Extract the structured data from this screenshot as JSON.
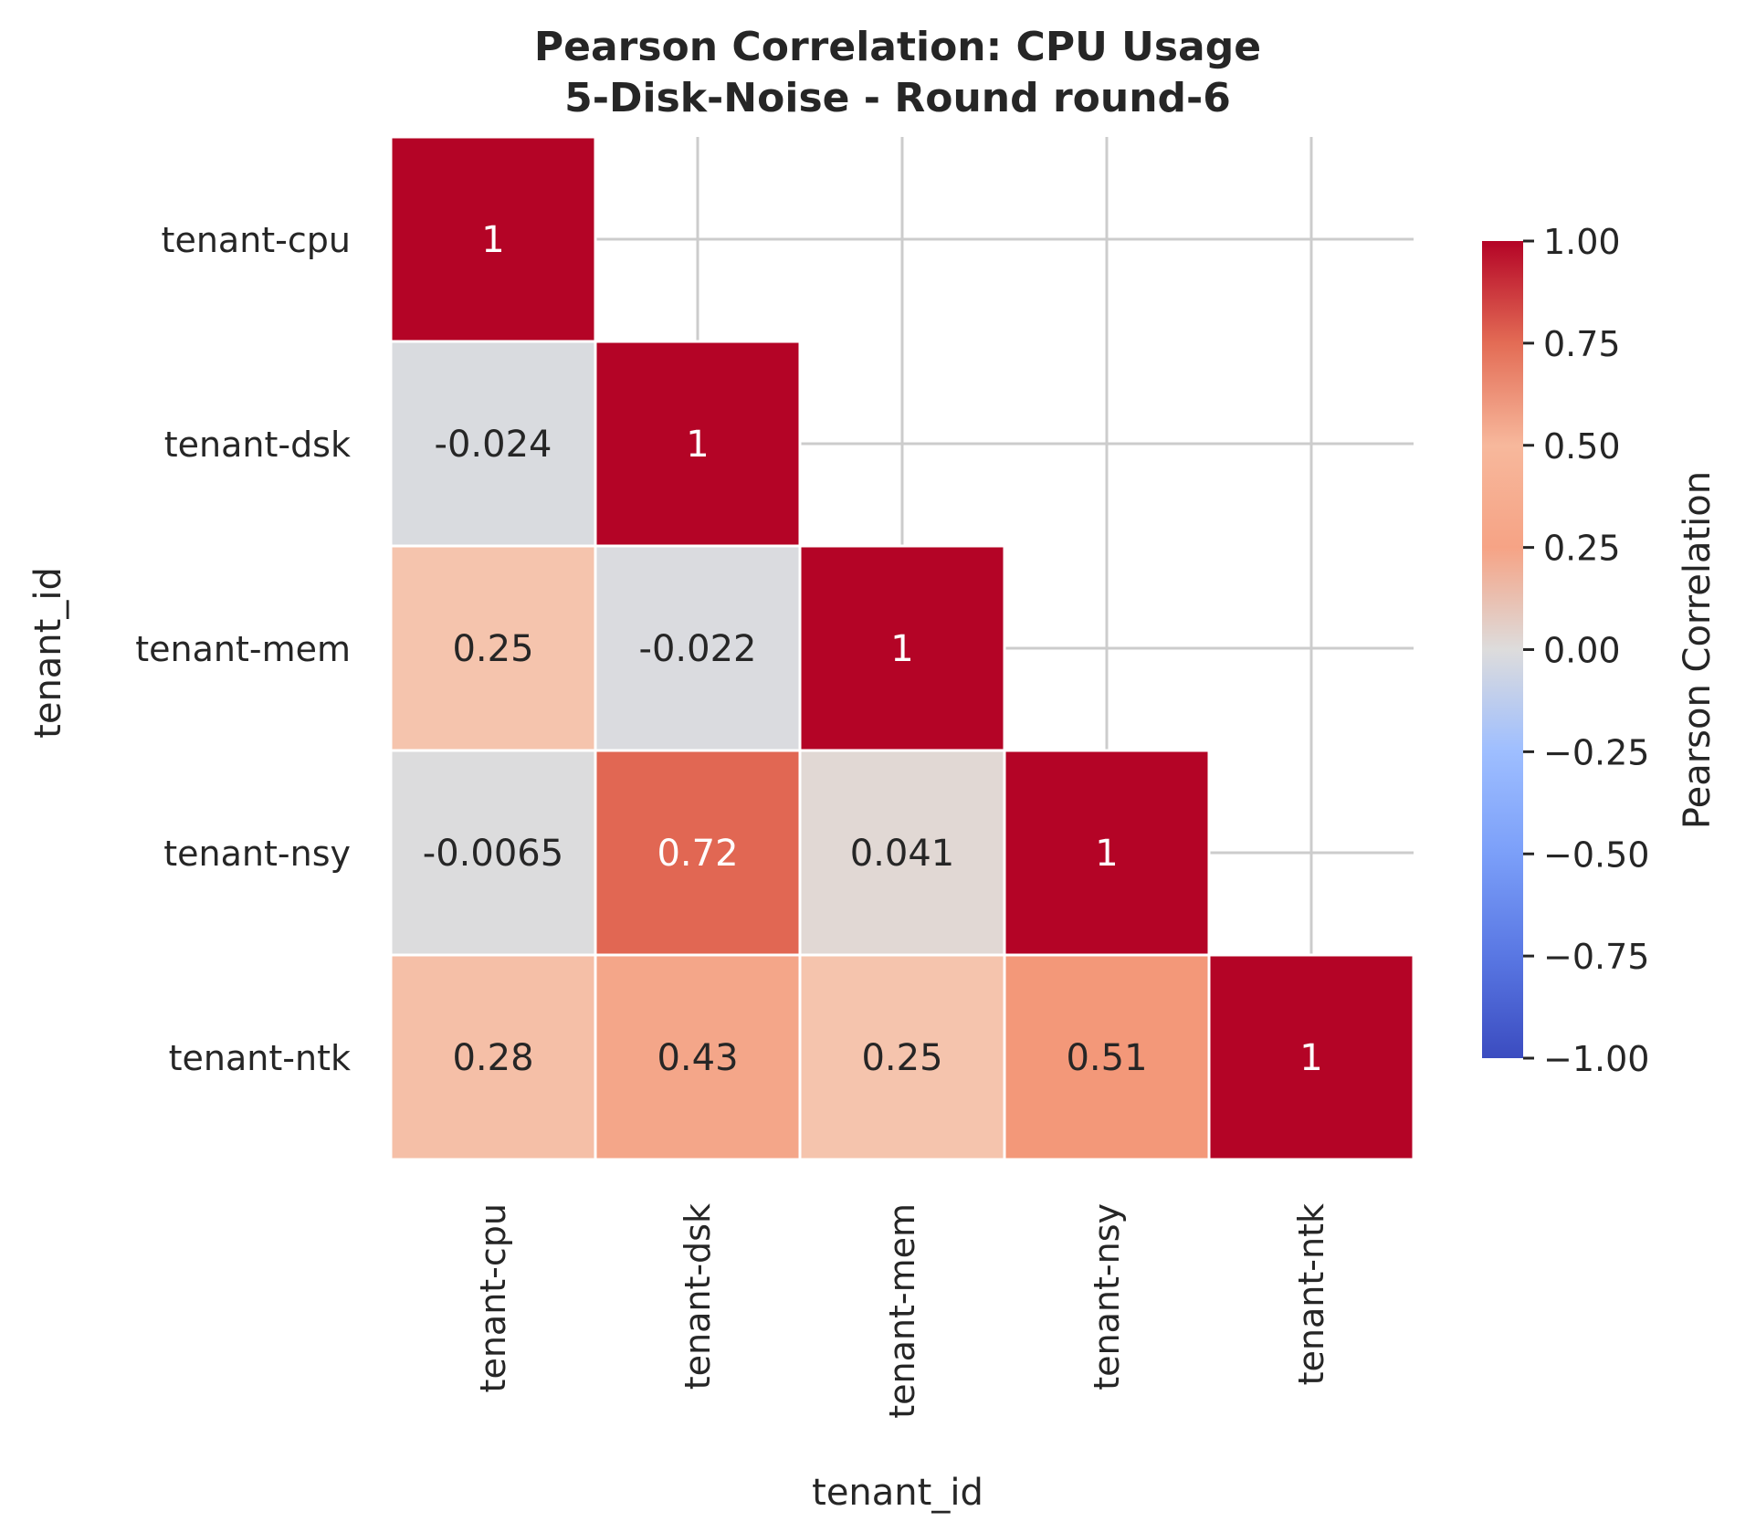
{
  "chart_data": {
    "type": "heatmap",
    "title_line1": "Pearson Correlation: CPU Usage",
    "title_line2": "5-Disk-Noise - Round round-6",
    "xlabel": "tenant_id",
    "ylabel": "tenant_id",
    "categories": [
      "tenant-cpu",
      "tenant-dsk",
      "tenant-mem",
      "tenant-nsy",
      "tenant-ntk"
    ],
    "mask": "upper-triangle",
    "values": [
      [
        1,
        null,
        null,
        null,
        null
      ],
      [
        -0.024,
        1,
        null,
        null,
        null
      ],
      [
        0.25,
        -0.022,
        1,
        null,
        null
      ],
      [
        -0.0065,
        0.72,
        0.041,
        1,
        null
      ],
      [
        0.28,
        0.43,
        0.25,
        0.51,
        1
      ]
    ],
    "cell_labels": [
      [
        "1",
        "",
        "",
        "",
        ""
      ],
      [
        "-0.024",
        "1",
        "",
        "",
        ""
      ],
      [
        "0.25",
        "-0.022",
        "1",
        "",
        ""
      ],
      [
        "-0.0065",
        "0.72",
        "0.041",
        "1",
        ""
      ],
      [
        "0.28",
        "0.43",
        "0.25",
        "0.51",
        "1"
      ]
    ],
    "colormap": "coolwarm",
    "vmin": -1,
    "vmax": 1,
    "colorbar": {
      "label": "Pearson Correlation",
      "ticks": [
        1,
        0.75,
        0.5,
        0.25,
        0,
        -0.25,
        -0.5,
        -0.75,
        -1
      ],
      "tick_labels": [
        "1.00",
        "0.75",
        "0.50",
        "0.25",
        "0.00",
        "−0.25",
        "−0.50",
        "−0.75",
        "−1.00"
      ]
    },
    "grid": true,
    "colors": {
      "grid": "#cccccc",
      "cell_border": "#ffffff",
      "text_dark": "#262626",
      "text_light": "#ffffff"
    }
  }
}
